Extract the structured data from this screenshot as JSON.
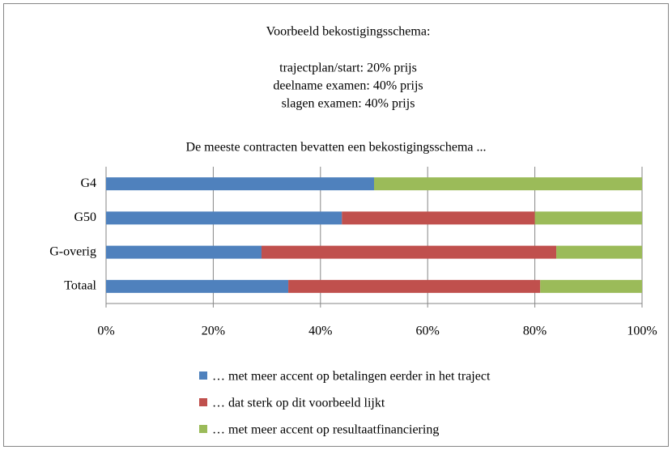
{
  "chart_data": {
    "type": "stacked-barh",
    "title": "Voorbeeld bekostigingsschema:",
    "subtitle": [
      "trajectplan/start: 20% prijs",
      "deelname examen: 40% prijs",
      "slagen examen: 40% prijs"
    ],
    "note": "De meeste contracten bevatten een bekostigingsschema ...",
    "categories": [
      "G4",
      "G50",
      "G-overig",
      "Totaal"
    ],
    "series": [
      {
        "name": "… met meer accent op betalingen eerder in het traject",
        "color": "#4f81bd",
        "values": [
          50,
          44,
          29,
          34
        ]
      },
      {
        "name": "… dat sterk op dit voorbeeld lijkt",
        "color": "#c0504d",
        "values": [
          0,
          36,
          55,
          47
        ]
      },
      {
        "name": "… met meer accent op resultaatfinanciering",
        "color": "#9bbb59",
        "values": [
          50,
          20,
          16,
          19
        ]
      }
    ],
    "xlim": [
      0,
      100
    ],
    "xticks": [
      {
        "value": 0,
        "label": "0%"
      },
      {
        "value": 20,
        "label": "20%"
      },
      {
        "value": 40,
        "label": "40%"
      },
      {
        "value": 60,
        "label": "60%"
      },
      {
        "value": 80,
        "label": "80%"
      },
      {
        "value": 100,
        "label": "100%"
      }
    ],
    "grid": true,
    "legend": "bottom"
  }
}
